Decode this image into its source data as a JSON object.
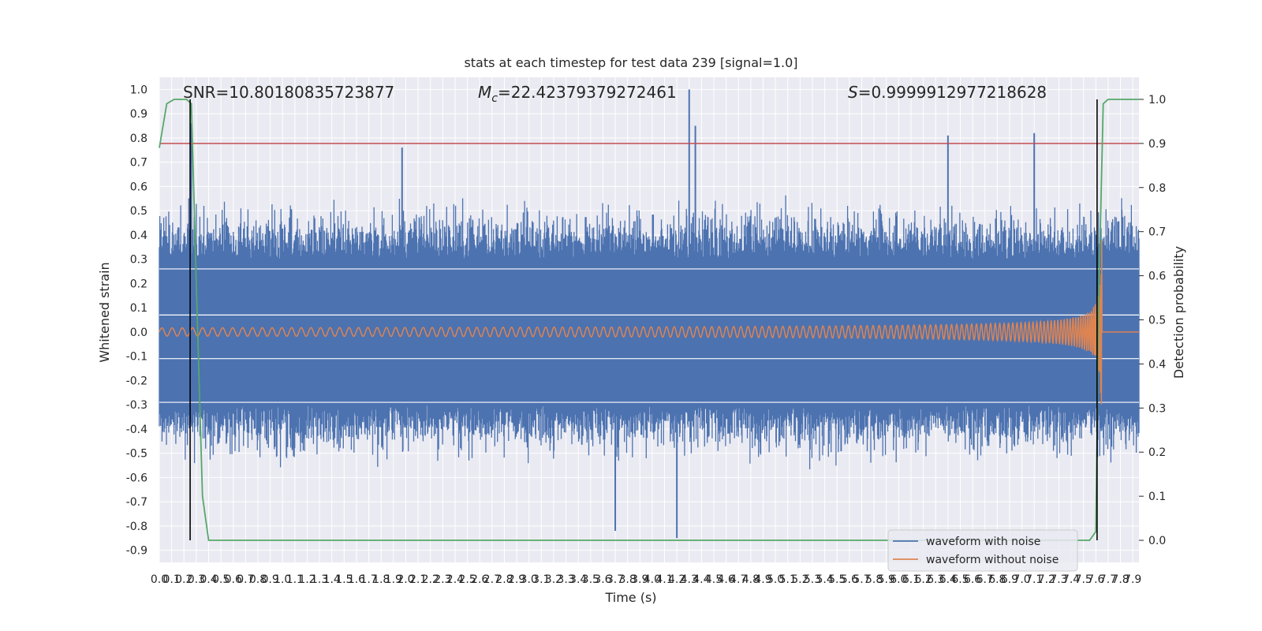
{
  "chart_data": {
    "type": "line",
    "title": "stats at each timestep for test data 239 [signal=1.0]",
    "xlabel": "Time (s)",
    "ylabel": "Whitened strain",
    "y2label": "Detection probability",
    "xlim": [
      0.0,
      7.95
    ],
    "ylim": [
      -0.95,
      1.05
    ],
    "y2lim": [
      -0.05,
      1.05
    ],
    "x_ticks": [
      "0.0",
      "0.1",
      "0.2",
      "0.3",
      "0.4",
      "0.5",
      "0.6",
      "0.7",
      "0.8",
      "0.9",
      "1.0",
      "1.1",
      "1.2",
      "1.3",
      "1.4",
      "1.5",
      "1.6",
      "1.7",
      "1.8",
      "1.9",
      "2.0",
      "2.1",
      "2.2",
      "2.3",
      "2.4",
      "2.5",
      "2.6",
      "2.7",
      "2.8",
      "2.9",
      "3.0",
      "3.1",
      "3.2",
      "3.3",
      "3.4",
      "3.5",
      "3.6",
      "3.7",
      "3.8",
      "3.9",
      "4.0",
      "4.1",
      "4.2",
      "4.3",
      "4.4",
      "4.5",
      "4.6",
      "4.7",
      "4.8",
      "4.9",
      "5.0",
      "5.1",
      "5.2",
      "5.3",
      "5.4",
      "5.5",
      "5.6",
      "5.7",
      "5.8",
      "5.9",
      "6.0",
      "6.1",
      "6.2",
      "6.3",
      "6.4",
      "6.5",
      "6.6",
      "6.7",
      "6.8",
      "6.9",
      "7.0",
      "7.1",
      "7.2",
      "7.3",
      "7.4",
      "7.5",
      "7.6",
      "7.7",
      "7.8",
      "7.9"
    ],
    "y_ticks": [
      "1.0",
      "0.9",
      "0.8",
      "0.7",
      "0.6",
      "0.5",
      "0.4",
      "0.3",
      "0.2",
      "0.1",
      "0.0",
      "-0.1",
      "-0.2",
      "-0.3",
      "-0.4",
      "-0.5",
      "-0.6",
      "-0.7",
      "-0.8",
      "-0.9"
    ],
    "y2_ticks": [
      "1.0",
      "0.9",
      "0.8",
      "0.7",
      "0.6",
      "0.5",
      "0.4",
      "0.3",
      "0.2",
      "0.1",
      "0.0"
    ],
    "annotations": {
      "snr": "SNR=10.80180835723877",
      "mc_symbol": "M",
      "mc_sub": "c",
      "mc_value": "=22.42379379272461",
      "s_symbol": "S",
      "s_value": "=0.9999912977218628"
    },
    "threshold_y2": 0.9,
    "vertical_markers_x": [
      0.25,
      7.61
    ],
    "series": [
      {
        "name": "waveform with noise",
        "color": "#4c72b0",
        "envelope_typical": 0.35,
        "peaks": [
          [
            0.26,
            0.86
          ],
          [
            4.3,
            1.0
          ],
          [
            4.35,
            0.85
          ],
          [
            4.2,
            -0.85
          ],
          [
            3.7,
            -0.82
          ],
          [
            6.4,
            0.81
          ],
          [
            7.1,
            0.82
          ],
          [
            1.97,
            0.76
          ]
        ]
      },
      {
        "name": "waveform without noise",
        "color": "#dd8452",
        "chirp_end_x": 7.65,
        "peak_amplitude": 0.44
      },
      {
        "name": "detection probability",
        "color": "#55a868",
        "axis": "right",
        "points": [
          [
            0.0,
            0.89
          ],
          [
            0.06,
            0.99
          ],
          [
            0.12,
            1.0
          ],
          [
            0.22,
            1.0
          ],
          [
            0.26,
            0.99
          ],
          [
            0.3,
            0.58
          ],
          [
            0.35,
            0.1
          ],
          [
            0.4,
            0.0
          ],
          [
            7.55,
            0.0
          ],
          [
            7.6,
            0.02
          ],
          [
            7.62,
            0.5
          ],
          [
            7.66,
            0.99
          ],
          [
            7.7,
            1.0
          ],
          [
            7.95,
            1.0
          ]
        ]
      }
    ],
    "horizontal_lines_y": [
      0.26,
      0.07,
      -0.11,
      -0.29
    ],
    "grid": true,
    "legend_position": "lower-right"
  }
}
